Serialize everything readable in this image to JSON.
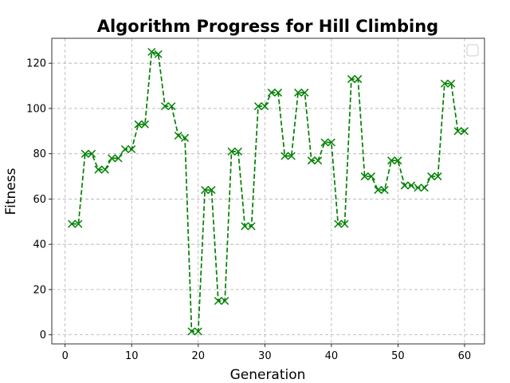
{
  "chart_data": {
    "type": "line",
    "title": "Algorithm Progress for Hill Climbing",
    "xlabel": "Generation",
    "ylabel": "Fitness",
    "xlim": [
      -2,
      63
    ],
    "ylim": [
      -4,
      131
    ],
    "xticks": [
      0,
      10,
      20,
      30,
      40,
      50,
      60
    ],
    "yticks": [
      0,
      20,
      40,
      60,
      80,
      100,
      120
    ],
    "grid": true,
    "legend": "top-right, empty",
    "series": [
      {
        "color": "#008000",
        "line_style": "dashed",
        "marker": "x",
        "x": [
          1,
          2,
          3,
          4,
          5,
          6,
          7,
          8,
          9,
          10,
          11,
          12,
          13,
          14,
          15,
          16,
          17,
          18,
          19,
          20,
          21,
          22,
          23,
          24,
          25,
          26,
          27,
          28,
          29,
          30,
          31,
          32,
          33,
          34,
          35,
          36,
          37,
          38,
          39,
          40,
          41,
          42,
          43,
          44,
          45,
          46,
          47,
          48,
          49,
          50,
          51,
          52,
          53,
          54,
          55,
          56,
          57,
          58,
          59,
          60
        ],
        "y": [
          49,
          49,
          80,
          80,
          73,
          73,
          78,
          78,
          82,
          82,
          93,
          93,
          125,
          124,
          101,
          101,
          88,
          87,
          1.5,
          1.5,
          64,
          64,
          15,
          15,
          81,
          81,
          48,
          48,
          101,
          101,
          107,
          107,
          79,
          79,
          107,
          107,
          77,
          77,
          85,
          85,
          49,
          49,
          113,
          113,
          70,
          70,
          64,
          64,
          77,
          77,
          66,
          66,
          65,
          65,
          70,
          70,
          111,
          111,
          90,
          90
        ]
      }
    ]
  }
}
